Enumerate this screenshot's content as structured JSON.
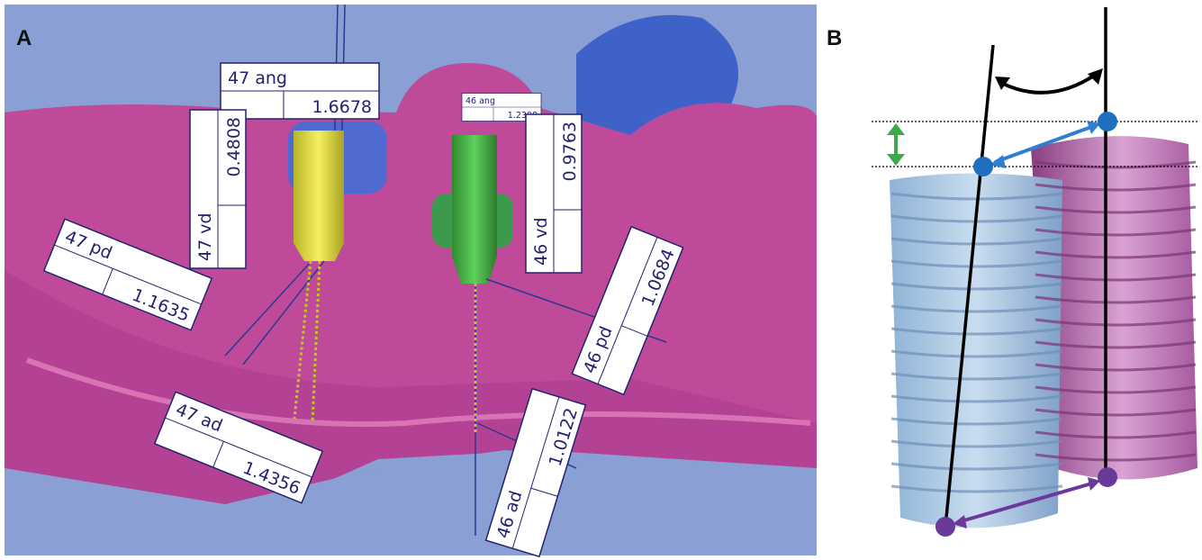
{
  "panels": {
    "a": "A",
    "b": "B"
  },
  "measurements": [
    {
      "label": "47 ang",
      "value": "1.6678"
    },
    {
      "label": "46 ang",
      "value": "1.2388"
    },
    {
      "label": "47 vd",
      "value": "0.4808"
    },
    {
      "label": "46 vd",
      "value": "0.9763"
    },
    {
      "label": "47 pd",
      "value": "1.1635"
    },
    {
      "label": "46 pd",
      "value": "1.0684"
    },
    {
      "label": "47 ad",
      "value": "1.4356"
    },
    {
      "label": "46 ad",
      "value": "1.0122"
    }
  ]
}
